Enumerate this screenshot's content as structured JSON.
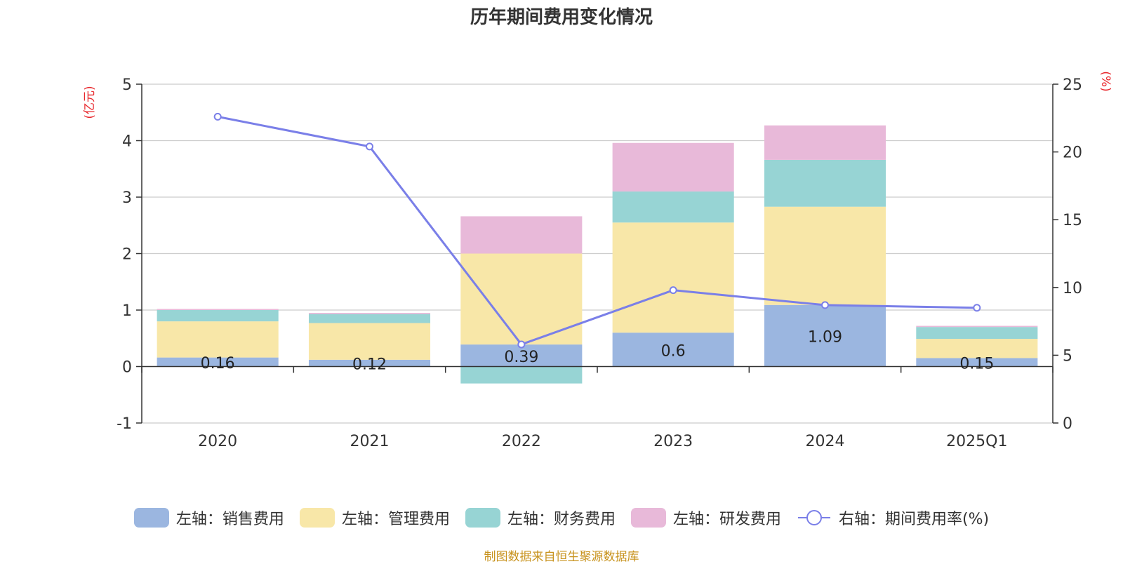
{
  "chart_data": {
    "type": "bar",
    "stacked": true,
    "title": "历年期间费用变化情况",
    "categories": [
      "2020",
      "2021",
      "2022",
      "2023",
      "2024",
      "2025Q1"
    ],
    "left_axis": {
      "label": "(亿元)",
      "range": [
        -1,
        5
      ],
      "ticks": [
        -1,
        0,
        1,
        2,
        3,
        4,
        5
      ]
    },
    "right_axis": {
      "label": "(%)",
      "range": [
        0,
        25
      ],
      "ticks": [
        0,
        5,
        10,
        15,
        20,
        25
      ]
    },
    "series": [
      {
        "name": "左轴：销售费用",
        "axis": "left",
        "kind": "bar",
        "color": "#9bb6e0",
        "values": [
          0.16,
          0.12,
          0.39,
          0.6,
          1.09,
          0.15
        ],
        "labels": [
          "0.16",
          "0.12",
          "0.39",
          "0.6",
          "1.09",
          "0.15"
        ]
      },
      {
        "name": "左轴：管理费用",
        "axis": "left",
        "kind": "bar",
        "color": "#f8e7a8",
        "values": [
          0.64,
          0.65,
          1.61,
          1.95,
          1.74,
          0.34
        ]
      },
      {
        "name": "左轴：财务费用",
        "axis": "left",
        "kind": "bar",
        "color": "#97d4d4",
        "values": [
          0.2,
          0.16,
          -0.3,
          0.55,
          0.83,
          0.21
        ]
      },
      {
        "name": "左轴：研发费用",
        "axis": "left",
        "kind": "bar",
        "color": "#e8b9d9",
        "values": [
          0.02,
          0.02,
          0.66,
          0.86,
          0.61,
          0.02
        ]
      },
      {
        "name": "右轴：期间费用率(%)",
        "axis": "right",
        "kind": "line",
        "color": "#7a7fe8",
        "values": [
          22.6,
          20.4,
          5.8,
          9.8,
          8.7,
          8.5
        ]
      }
    ],
    "grid": true,
    "legend_position": "bottom"
  },
  "source_note": "制图数据来自恒生聚源数据库"
}
